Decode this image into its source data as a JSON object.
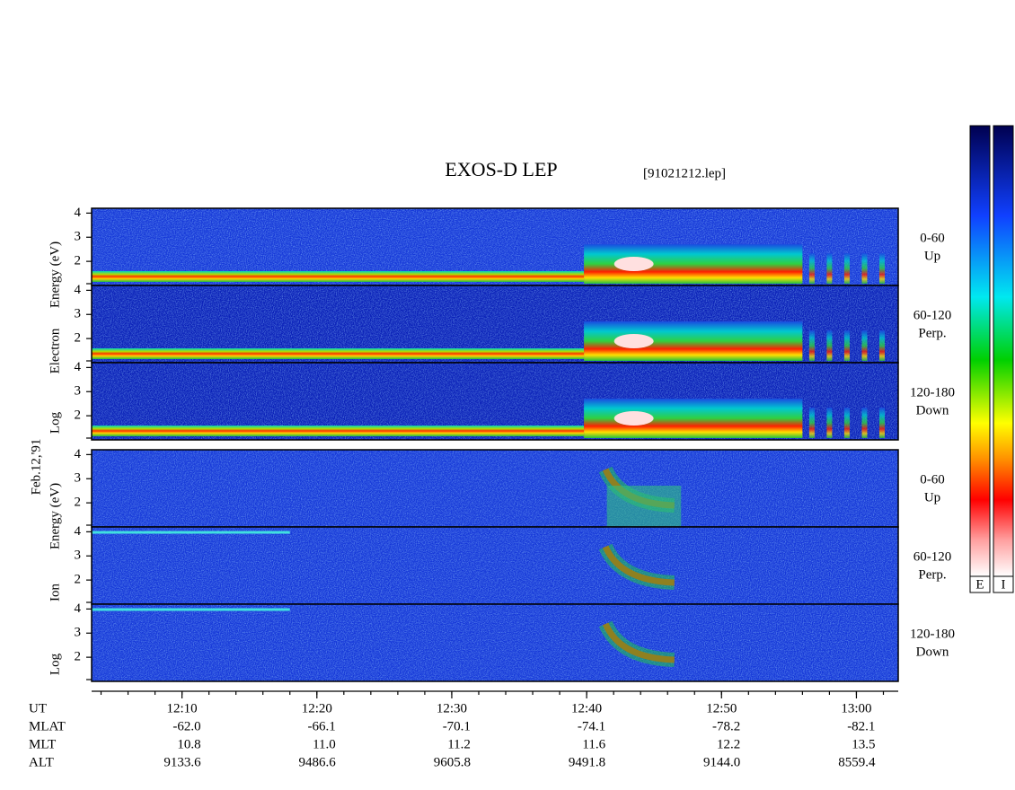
{
  "chart_data": {
    "type": "spectrogram",
    "title": "EXOS-D LEP",
    "file": "[91021212.lep]",
    "date_label": "Feb.12,'91",
    "groups": [
      {
        "ylabel": [
          "Log",
          "Electron",
          "Energy (eV)"
        ],
        "panels": [
          {
            "angle": "0-60",
            "dir": "Up"
          },
          {
            "angle": "60-120",
            "dir": "Perp."
          },
          {
            "angle": "120-180",
            "dir": "Down"
          }
        ]
      },
      {
        "ylabel": [
          "Log",
          "Ion",
          "Energy (eV)"
        ],
        "panels": [
          {
            "angle": "0-60",
            "dir": "Up"
          },
          {
            "angle": "60-120",
            "dir": "Perp."
          },
          {
            "angle": "120-180",
            "dir": "Down"
          }
        ]
      }
    ],
    "ylim": [
      1,
      4.2
    ],
    "yticks": [
      2,
      3,
      4
    ],
    "xlim": [
      3.3,
      63.1
    ],
    "xticks": [
      {
        "value": 10,
        "label": "12:10"
      },
      {
        "value": 20,
        "label": "12:20"
      },
      {
        "value": 30,
        "label": "12:30"
      },
      {
        "value": 40,
        "label": "12:40"
      },
      {
        "value": 50,
        "label": "12:50"
      },
      {
        "value": 60,
        "label": "13:00"
      }
    ],
    "x_label": "UT",
    "rows": [
      {
        "label": "MLAT",
        "values": [
          "-62.0",
          "-66.1",
          "-70.1",
          "-74.1",
          "-78.2",
          "-82.1"
        ]
      },
      {
        "label": "MLT",
        "values": [
          "10.8",
          "11.0",
          "11.2",
          "11.6",
          "12.2",
          "13.5"
        ]
      },
      {
        "label": "ALT",
        "values": [
          "9133.6",
          "9486.6",
          "9605.8",
          "9491.8",
          "9144.0",
          "8559.4"
        ]
      }
    ],
    "colorbar_labels": [
      "E",
      "I"
    ]
  }
}
